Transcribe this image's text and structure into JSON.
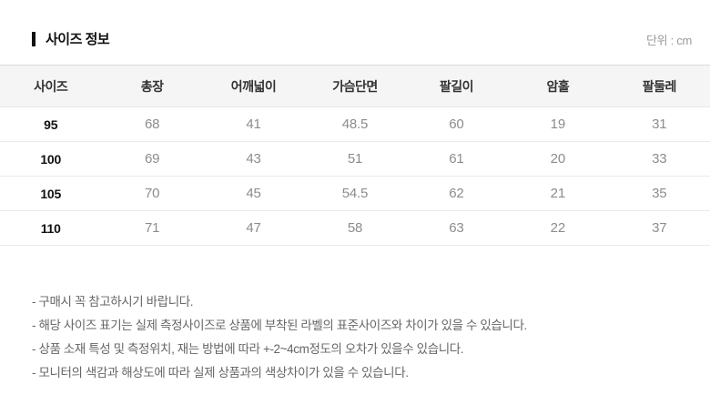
{
  "page": {
    "title": "사이즈 정보",
    "unit_label": "단위 : cm"
  },
  "table": {
    "headers": [
      "사이즈",
      "총장",
      "어깨넓이",
      "가슴단면",
      "팔길이",
      "암홀",
      "팔둘레"
    ],
    "rows": [
      {
        "size": "95",
        "values": [
          "68",
          "41",
          "48.5",
          "60",
          "19",
          "31"
        ]
      },
      {
        "size": "100",
        "values": [
          "69",
          "43",
          "51",
          "61",
          "20",
          "33"
        ]
      },
      {
        "size": "105",
        "values": [
          "70",
          "45",
          "54.5",
          "62",
          "21",
          "35"
        ]
      },
      {
        "size": "110",
        "values": [
          "71",
          "47",
          "58",
          "63",
          "22",
          "37"
        ]
      }
    ]
  },
  "notes": [
    "- 구매시 꼭 참고하시기 바랍니다.",
    "- 해당 사이즈 표기는 실제 측정사이즈로 상품에 부착된 라벨의 표준사이즈와 차이가 있을 수 있습니다.",
    "- 상품 소재 특성 및 측정위치, 재는 방법에 따라 +-2~4cm정도의 오차가 있을수 있습니다.",
    "- 모니터의 색감과 해상도에 따라 실제 상품과의 색상차이가 있을 수 있습니다."
  ],
  "colors": {
    "header_band": "#f5f5f5",
    "title_text": "#111111",
    "value_text": "#8c8c8c",
    "note_text": "#666666"
  }
}
